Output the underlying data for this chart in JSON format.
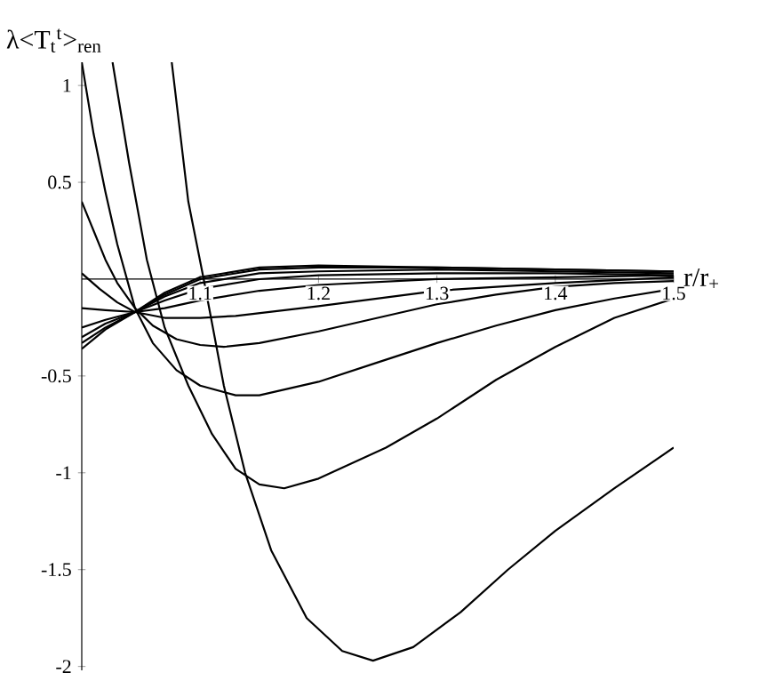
{
  "chart_data": {
    "type": "line",
    "xlabel": "r/r$_{+}$",
    "ylabel": "λ<T$_{t}$$^{t}$>$_{ren}$",
    "xlim": [
      1,
      1.5
    ],
    "ylim": [
      -2.02,
      1.12
    ],
    "xticks": [
      1.1,
      1.2,
      1.3,
      1.4,
      1.5
    ],
    "yticks": [
      -2,
      -1.5,
      -1,
      -0.5,
      0.5,
      1
    ],
    "series": [
      {
        "color": "#000000",
        "x": [
          1.076,
          1.09,
          1.103,
          1.12,
          1.138,
          1.16,
          1.19,
          1.22,
          1.246,
          1.28,
          1.32,
          1.36,
          1.4,
          1.45,
          1.5
        ],
        "values": [
          1.12,
          0.4,
          0,
          -0.55,
          -1.0,
          -1.4,
          -1.75,
          -1.92,
          -1.97,
          -1.9,
          -1.72,
          -1.5,
          -1.3,
          -1.08,
          -0.87
        ]
      },
      {
        "color": "#000000",
        "x": [
          1.026,
          1.04,
          1.055,
          1.07,
          1.09,
          1.11,
          1.13,
          1.15,
          1.171,
          1.2,
          1.257,
          1.3,
          1.35,
          1.4,
          1.45,
          1.5
        ],
        "values": [
          1.12,
          0.6,
          0.1,
          -0.25,
          -0.55,
          -0.8,
          -0.98,
          -1.06,
          -1.08,
          -1.03,
          -0.87,
          -0.72,
          -0.52,
          -0.35,
          -0.2,
          -0.1
        ]
      },
      {
        "color": "#000000",
        "x": [
          1.0,
          1.01,
          1.02,
          1.03,
          1.045,
          1.06,
          1.08,
          1.1,
          1.13,
          1.15,
          1.2,
          1.25,
          1.3,
          1.35,
          1.4,
          1.45,
          1.5
        ],
        "values": [
          1.12,
          0.75,
          0.45,
          0.18,
          -0.15,
          -0.33,
          -0.47,
          -0.55,
          -0.6,
          -0.6,
          -0.53,
          -0.43,
          -0.33,
          -0.24,
          -0.16,
          -0.1,
          -0.05
        ]
      },
      {
        "color": "#000000",
        "x": [
          1.0,
          1.01,
          1.02,
          1.03,
          1.045,
          1.06,
          1.08,
          1.1,
          1.12,
          1.15,
          1.2,
          1.25,
          1.3,
          1.35,
          1.4,
          1.45,
          1.5
        ],
        "values": [
          0.4,
          0.25,
          0.1,
          -0.02,
          -0.15,
          -0.24,
          -0.31,
          -0.34,
          -0.35,
          -0.33,
          -0.27,
          -0.2,
          -0.13,
          -0.08,
          -0.04,
          -0.02,
          -0.01
        ]
      },
      {
        "color": "#000000",
        "x": [
          1.0,
          1.015,
          1.03,
          1.045,
          1.07,
          1.1,
          1.13,
          1.2,
          1.3,
          1.4,
          1.5
        ],
        "values": [
          0.03,
          -0.05,
          -0.12,
          -0.17,
          -0.2,
          -0.2,
          -0.19,
          -0.14,
          -0.06,
          -0.02,
          0.01
        ]
      },
      {
        "color": "#000000",
        "x": [
          1.0,
          1.02,
          1.045,
          1.07,
          1.1,
          1.15,
          1.2,
          1.3,
          1.4,
          1.5
        ],
        "values": [
          -0.15,
          -0.16,
          -0.17,
          -0.15,
          -0.11,
          -0.06,
          -0.03,
          0.0,
          0.01,
          0.02
        ]
      },
      {
        "color": "#000000",
        "x": [
          1.0,
          1.02,
          1.045,
          1.07,
          1.1,
          1.15,
          1.2,
          1.3,
          1.4,
          1.5
        ],
        "values": [
          -0.25,
          -0.21,
          -0.17,
          -0.11,
          -0.05,
          0.0,
          0.02,
          0.03,
          0.03,
          0.02
        ]
      },
      {
        "color": "#000000",
        "x": [
          1.0,
          1.02,
          1.045,
          1.07,
          1.1,
          1.15,
          1.2,
          1.3,
          1.4,
          1.5
        ],
        "values": [
          -0.3,
          -0.23,
          -0.17,
          -0.09,
          -0.02,
          0.03,
          0.04,
          0.05,
          0.04,
          0.03
        ]
      },
      {
        "color": "#000000",
        "x": [
          1.0,
          1.02,
          1.045,
          1.07,
          1.1,
          1.15,
          1.2,
          1.3,
          1.4,
          1.5
        ],
        "values": [
          -0.33,
          -0.25,
          -0.17,
          -0.08,
          0.0,
          0.05,
          0.06,
          0.06,
          0.05,
          0.04
        ]
      },
      {
        "color": "#000000",
        "x": [
          1.0,
          1.02,
          1.045,
          1.07,
          1.1,
          1.15,
          1.2,
          1.3,
          1.4,
          1.5
        ],
        "values": [
          -0.36,
          -0.26,
          -0.17,
          -0.07,
          0.01,
          0.06,
          0.07,
          0.06,
          0.05,
          0.04
        ]
      }
    ]
  }
}
